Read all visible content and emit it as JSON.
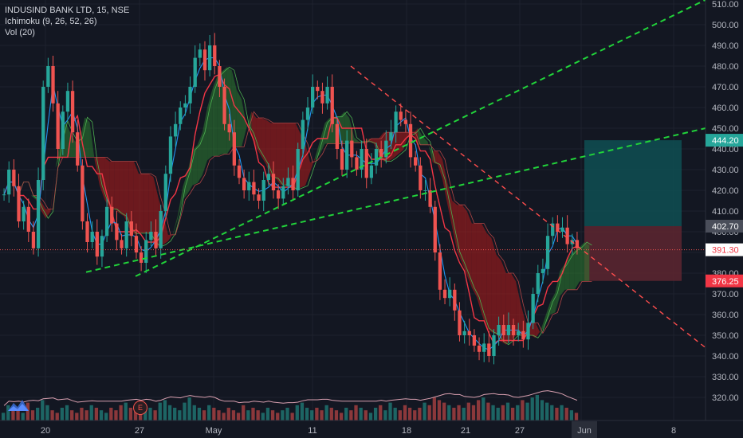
{
  "legend": {
    "symbol": "INDUSIND BANK LTD, 15, NSE",
    "indicator1": "Ichimoku (9, 26, 52, 26)",
    "indicator2": "Vol (20)"
  },
  "event_marker": "E",
  "price_axis": {
    "ticks": [
      "510.00",
      "500.00",
      "490.00",
      "480.00",
      "470.00",
      "460.00",
      "450.00",
      "440.00",
      "430.00",
      "420.00",
      "410.00",
      "400.00",
      "390.00",
      "380.00",
      "370.00",
      "360.00",
      "350.00",
      "340.00",
      "330.00",
      "320.00"
    ],
    "tick_values": [
      510,
      500,
      490,
      480,
      470,
      460,
      450,
      440,
      430,
      420,
      410,
      400,
      390,
      380,
      370,
      360,
      350,
      340,
      330,
      320
    ],
    "badges": [
      {
        "label": "444.20",
        "value": 444.2,
        "color": "#26a69a",
        "text_color": "#ffffff"
      },
      {
        "label": "402.70",
        "value": 402.7,
        "color": "#4a4e5a",
        "text_color": "#ffffff"
      },
      {
        "label": "391.30",
        "value": 391.3,
        "color": "#ffffff",
        "text_color": "#f23645"
      },
      {
        "label": "376.25",
        "value": 376.25,
        "color": "#f23645",
        "text_color": "#ffffff"
      }
    ]
  },
  "time_axis": {
    "labels": [
      "20",
      "27",
      "May",
      "11",
      "18",
      "21",
      "27",
      "Jun",
      "8"
    ],
    "highlight": "Jun"
  },
  "colors": {
    "background": "#131722",
    "grid": "#1e222d",
    "text": "#b2b5be",
    "up": "#26a69a",
    "down": "#ef5350",
    "conversion": "#2196f3",
    "base": "#f23645",
    "cloud_bull": "#2e7d32",
    "cloud_bear": "#b71c1c",
    "trendline_green": "#21d33a",
    "trendline_red": "#ff4d4d",
    "target_zone": "#0f4f52",
    "stop_zone": "#5a2530"
  },
  "chart_data": {
    "type": "line",
    "title": "INDUSIND BANK LTD, 15, NSE",
    "ylim": [
      315,
      512
    ],
    "xlabel": "",
    "ylabel": "",
    "series": [
      {
        "name": "close",
        "values": [
          418,
          430,
          422,
          405,
          412,
          400,
          392,
          425,
          470,
          480,
          462,
          440,
          458,
          468,
          448,
          432,
          405,
          395,
          400,
          388,
          398,
          412,
          404,
          396,
          392,
          405,
          398,
          390,
          385,
          396,
          400,
          392,
          410,
          428,
          446,
          452,
          460,
          462,
          470,
          484,
          488,
          478,
          490,
          480,
          470,
          452,
          448,
          432,
          426,
          420,
          424,
          418,
          415,
          425,
          428,
          420,
          416,
          422,
          426,
          420,
          440,
          454,
          460,
          470,
          468,
          462,
          470,
          452,
          440,
          430,
          444,
          436,
          430,
          440,
          426,
          432,
          440,
          436,
          444,
          448,
          458,
          454,
          452,
          436,
          432,
          420,
          420,
          412,
          390,
          372,
          368,
          372,
          362,
          350,
          352,
          350,
          345,
          342,
          346,
          340,
          350,
          355,
          350,
          355,
          350,
          352,
          348,
          356,
          370,
          380,
          382,
          398,
          404,
          400,
          402,
          394,
          396,
          392
        ]
      },
      {
        "name": "volume",
        "values": [
          3,
          6,
          4,
          5,
          3,
          7,
          4,
          5,
          8,
          6,
          4,
          3,
          5,
          6,
          4,
          3,
          5,
          4,
          6,
          5,
          4,
          3,
          5,
          4,
          6,
          7,
          5,
          4,
          3,
          6,
          5,
          4,
          7,
          8,
          6,
          5,
          4,
          7,
          9,
          6,
          5,
          4,
          6,
          5,
          4,
          3,
          5,
          4,
          3,
          6,
          4,
          5,
          4,
          3,
          5,
          4,
          3,
          4,
          5,
          3,
          6,
          7,
          5,
          4,
          5,
          4,
          6,
          5,
          4,
          3,
          5,
          4,
          6,
          5,
          4,
          3,
          5,
          6,
          4,
          7,
          5,
          4,
          6,
          5,
          4,
          5,
          7,
          6,
          9,
          8,
          7,
          6,
          5,
          6,
          5,
          7,
          6,
          8,
          9,
          7,
          6,
          5,
          6,
          7,
          5,
          6,
          8,
          7,
          9,
          10,
          8,
          7,
          6,
          5,
          6,
          5,
          4,
          3
        ]
      }
    ],
    "horizontal_lines": [
      391.3
    ],
    "target_zone": [
      402.7,
      444.2
    ],
    "stop_zone": [
      376.25,
      402.7
    ]
  }
}
